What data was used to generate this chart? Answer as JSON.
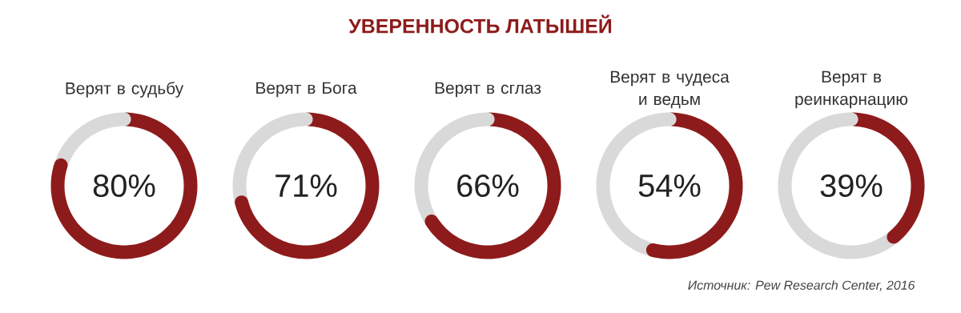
{
  "chart_data": [
    {
      "type": "other",
      "title": "УВЕРЕННОСТЬ ЛАТЫШЕЙ",
      "annotations": [
        "Источник: Pew Research Center, 2016"
      ]
    },
    {
      "type": "donut",
      "title": "Верят в судьбу",
      "categories": [
        null,
        null
      ],
      "values": [
        80,
        20
      ],
      "colors": [
        "#8e1b1b",
        "#d9d9d9"
      ],
      "value_labels": [
        "80%",
        null
      ]
    },
    {
      "type": "donut",
      "title": "Верят в Бога",
      "categories": [
        null,
        null
      ],
      "values": [
        71,
        29
      ],
      "colors": [
        "#8e1b1b",
        "#d9d9d9"
      ],
      "value_labels": [
        "71%",
        null
      ]
    },
    {
      "type": "donut",
      "title": "Верят в сглаз",
      "categories": [
        null,
        null
      ],
      "values": [
        66,
        34
      ],
      "colors": [
        "#8e1b1b",
        "#d9d9d9"
      ],
      "value_labels": [
        "66%",
        null
      ]
    },
    {
      "type": "donut",
      "title": "Верят в чудеса и ведьм",
      "categories": [
        null,
        null
      ],
      "values": [
        54,
        46
      ],
      "colors": [
        "#8e1b1b",
        "#d9d9d9"
      ],
      "value_labels": [
        "54%",
        null
      ]
    },
    {
      "type": "donut",
      "title": "Верят в реинкарнацию",
      "categories": [
        null,
        null
      ],
      "values": [
        39,
        61
      ],
      "colors": [
        "#8e1b1b",
        "#d9d9d9"
      ],
      "value_labels": [
        "39%",
        null
      ]
    }
  ]
}
